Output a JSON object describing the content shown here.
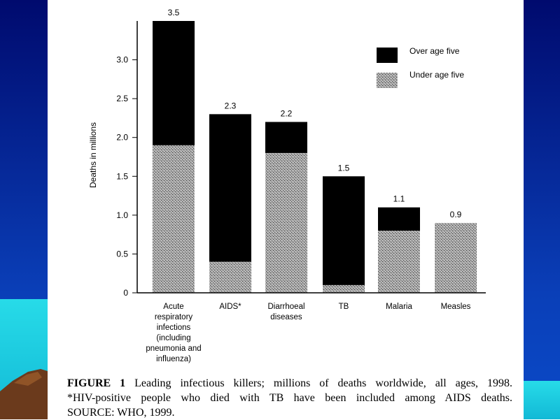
{
  "chart_data": {
    "type": "bar",
    "stacked": true,
    "categories": [
      [
        "Acute",
        "respiratory",
        "infections",
        "(including",
        "pneumonia and",
        "influenza)"
      ],
      [
        "AIDS*"
      ],
      [
        "Diarrhoeal",
        "diseases"
      ],
      [
        "TB"
      ],
      [
        "Malaria"
      ],
      [
        "Measles"
      ]
    ],
    "series": [
      {
        "name": "Under age five",
        "values": [
          1.9,
          0.4,
          1.8,
          0.1,
          0.8,
          0.9
        ],
        "fill": "#9a9a9a"
      },
      {
        "name": "Over age five",
        "values": [
          1.6,
          1.9,
          0.4,
          1.4,
          0.3,
          0.0
        ],
        "fill": "#000000"
      }
    ],
    "totals": [
      "3.5",
      "2.3",
      "2.2",
      "1.5",
      "1.1",
      "0.9"
    ],
    "ylabel": "Deaths in millions",
    "yticks": [
      "0",
      "0.5",
      "1.0",
      "1.5",
      "2.0",
      "2.5",
      "3.0"
    ],
    "ylim": [
      0,
      3.5
    ],
    "grid": false,
    "legend": "top-right"
  },
  "caption": {
    "label": "FIGURE 1",
    "line1": "Leading infectious killers; millions of deaths worldwide, all ages, 1998.",
    "line2": "*HIV-positive people who died with TB have been included among AIDS deaths.",
    "line3": "SOURCE: WHO, 1999."
  },
  "colors": {
    "background_top": "#000a6e",
    "background_bottom": "#0a4ac8",
    "sea": "#1fd3e6",
    "panel": "#ffffff",
    "ink": "#000000"
  }
}
